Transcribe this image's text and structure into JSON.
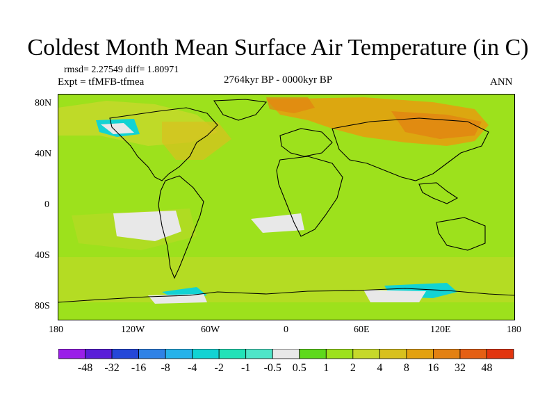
{
  "figure": {
    "title": "Coldest Month Mean Surface Air Temperature (in C)",
    "rmsd_line": "rmsd= 2.27549 diff= 1.80971",
    "expt_line": "Expt = tfMFB-tfmea",
    "period": "2764kyr BP - 0000kyr BP",
    "season": "ANN"
  },
  "axes": {
    "lat_labels": [
      "80N",
      "40N",
      "0",
      "40S",
      "80S"
    ],
    "lon_labels": [
      "180",
      "120W",
      "60W",
      "0",
      "60E",
      "120E",
      "180"
    ]
  },
  "colorbar": {
    "labels": [
      "-48",
      "-32",
      "-16",
      "-8",
      "-4",
      "-2",
      "-1",
      "-0.5",
      "0.5",
      "1",
      "2",
      "4",
      "8",
      "16",
      "32",
      "48"
    ],
    "colors": [
      "#9a1fe8",
      "#5a1ed8",
      "#2547d8",
      "#2f82e6",
      "#26b2ea",
      "#12d3d3",
      "#22e2b8",
      "#4ee5c8",
      "#e8e8e8",
      "#5ed91c",
      "#9de11c",
      "#c6d82a",
      "#d8c01e",
      "#e3a10f",
      "#e38112",
      "#e45f14",
      "#e2350e"
    ]
  },
  "colors": {
    "ocean_base": "#9de11c",
    "land_base": "#c6d82a"
  }
}
